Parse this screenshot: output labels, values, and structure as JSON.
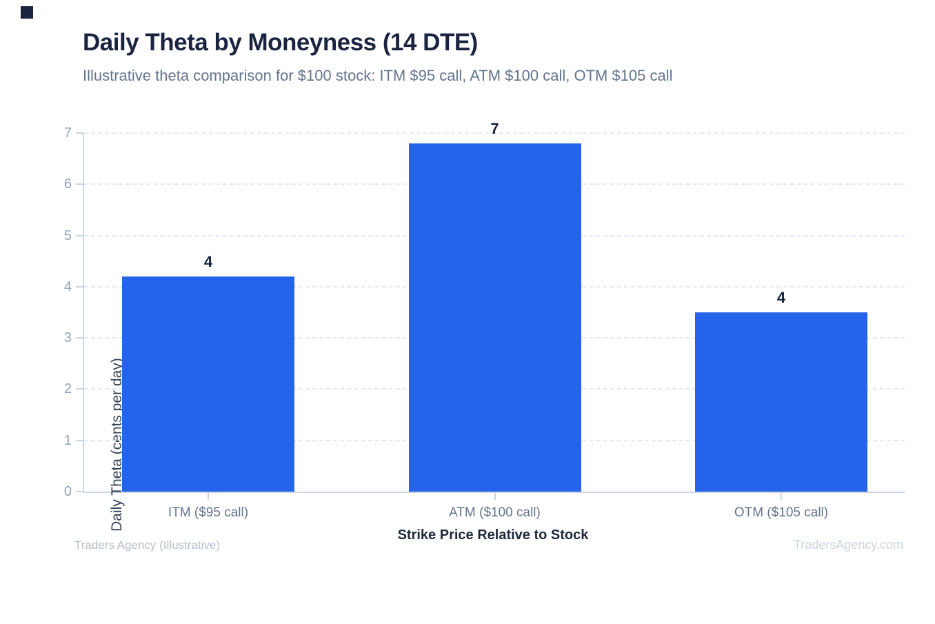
{
  "header": {
    "title": "Daily Theta by Moneyness (14 DTE)",
    "subtitle": "Illustrative theta comparison for $100 stock: ITM $95 call, ATM $100 call, OTM $105 call"
  },
  "chart_data": {
    "type": "bar",
    "title": "Daily Theta by Moneyness (14 DTE)",
    "subtitle": "Illustrative theta comparison for $100 stock: ITM $95 call, ATM $100 call, OTM $105 call",
    "categories": [
      "ITM ($95 call)",
      "ATM ($100 call)",
      "OTM ($105 call)"
    ],
    "values": [
      4.2,
      6.8,
      3.5
    ],
    "value_labels": [
      "4",
      "7",
      "4"
    ],
    "xlabel": "Strike Price Relative to Stock",
    "ylabel": "Daily Theta (cents per day)",
    "ylim": [
      0,
      7
    ],
    "yticks": [
      0,
      1,
      2,
      3,
      4,
      5,
      6,
      7
    ],
    "grid": "horizontal dashed",
    "legend": "none",
    "bar_color": "#2563eb"
  },
  "footer": {
    "left": "Traders Agency (Illustrative)",
    "right": "TradersAgency.com"
  },
  "colors": {
    "accent_bar": "#2563eb",
    "title_navy": "#1a2440",
    "subtitle_gray": "#64748b",
    "axis_gray": "#cbd5e1",
    "tick_label_gray": "#94a3b8"
  }
}
